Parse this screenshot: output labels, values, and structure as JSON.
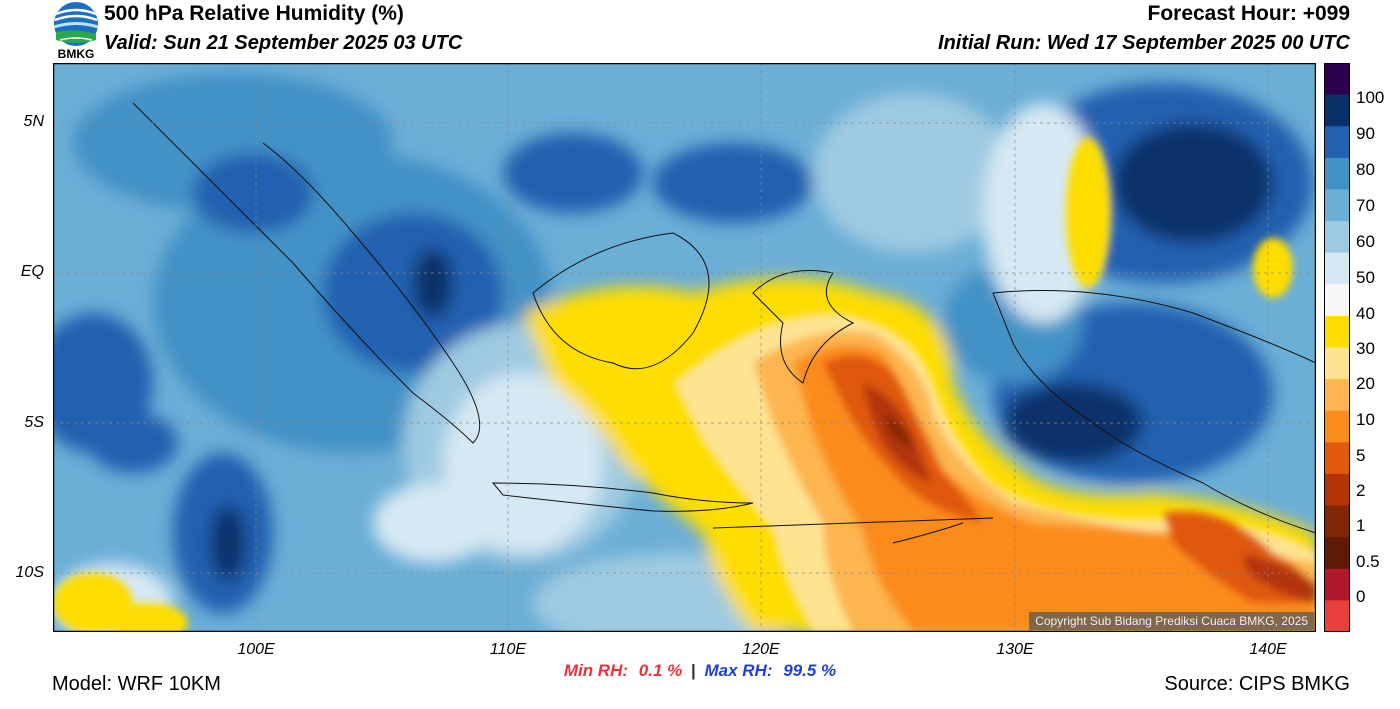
{
  "header": {
    "logo_text": "BMKG",
    "title": "500 hPa Relative Humidity (%)",
    "valid": "Valid: Sun 21 September 2025 03 UTC",
    "forecast_hour": "Forecast Hour: +099",
    "initial_run": "Initial Run: Wed 17 September 2025 00 UTC"
  },
  "map": {
    "lat_labels": [
      "5N",
      "EQ",
      "5S",
      "10S"
    ],
    "lon_labels": [
      "100E",
      "110E",
      "120E",
      "130E",
      "140E"
    ],
    "copyright": "Copyright Sub Bidang Prediksi Cuaca BMKG, 2025"
  },
  "colorbar": {
    "labels": [
      "100",
      "90",
      "80",
      "70",
      "60",
      "50",
      "40",
      "30",
      "20",
      "10",
      "5",
      "2",
      "1",
      "0.5",
      "0"
    ],
    "colors": [
      "#2c004f",
      "#08306b",
      "#2161b0",
      "#4292c6",
      "#6baed6",
      "#9ecae1",
      "#d5e8f3",
      "#f7f7f7",
      "#fedd00",
      "#fee391",
      "#fdb64f",
      "#fb8c1e",
      "#e0580a",
      "#b33407",
      "#7f2704",
      "#5e1a04",
      "#b2182b",
      "#e8403a"
    ]
  },
  "stats": {
    "min_label": "Min RH:",
    "min_value": "0.1 %",
    "separator": "|",
    "max_label": "Max RH:",
    "max_value": "99.5 %"
  },
  "footer": {
    "model": "Model: WRF 10KM",
    "source": "Source: CIPS BMKG"
  }
}
